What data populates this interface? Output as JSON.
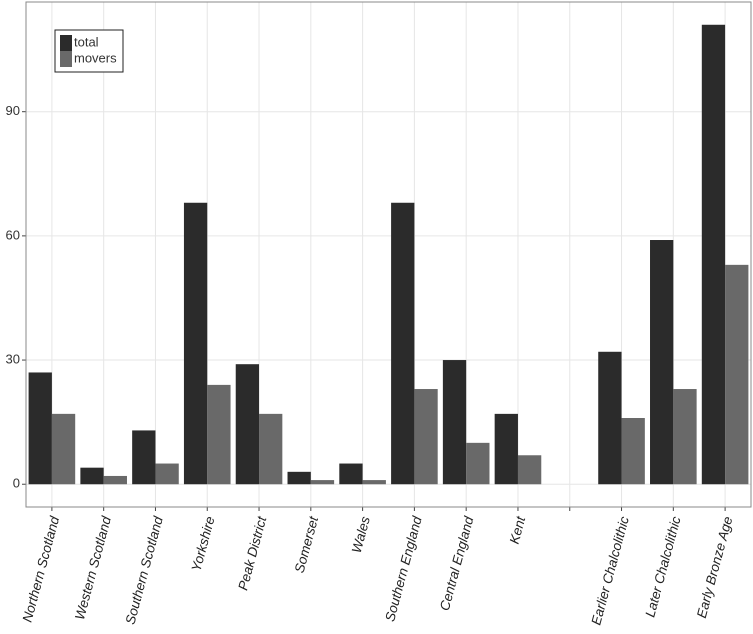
{
  "chart_data": {
    "type": "bar",
    "categories": [
      "Northern Scotland",
      "Western Scotland",
      "Southern Scotland",
      "Yorkshire",
      "Peak District",
      "Somerset",
      "Wales",
      "Southern England",
      "Central England",
      "Kent",
      null,
      "Earlier Chalcolithic",
      "Later Chalcolithic",
      "Early Bronze Age"
    ],
    "series": [
      {
        "name": "total",
        "color": "#2b2b2b",
        "values": [
          27,
          4,
          13,
          68,
          29,
          3,
          5,
          68,
          30,
          17,
          null,
          32,
          59,
          111
        ]
      },
      {
        "name": "movers",
        "color": "#696969",
        "values": [
          17,
          2,
          5,
          24,
          17,
          1,
          1,
          23,
          10,
          7,
          null,
          16,
          23,
          53
        ]
      }
    ],
    "ylim": [
      -5.5,
      116.5
    ],
    "yticks": [
      0,
      30,
      60,
      90
    ],
    "grid": true,
    "legend": "top-left"
  }
}
